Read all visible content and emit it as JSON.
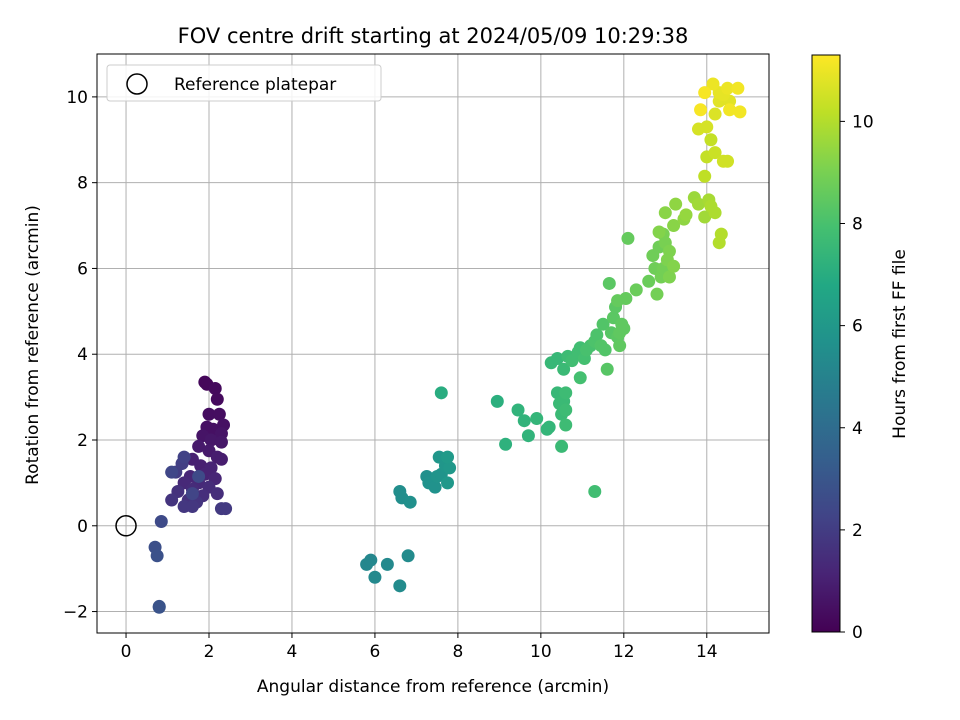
{
  "chart_data": {
    "type": "scatter",
    "title": "FOV centre drift starting at 2024/05/09 10:29:38",
    "xlabel": "Angular distance from reference (arcmin)",
    "ylabel": "Rotation from reference (arcmin)",
    "xlim": [
      -0.7,
      15.5
    ],
    "ylim": [
      -2.5,
      11.0
    ],
    "x_ticks": [
      0,
      2,
      4,
      6,
      8,
      10,
      12,
      14
    ],
    "y_ticks": [
      -2,
      0,
      2,
      4,
      6,
      8,
      10
    ],
    "grid": true,
    "legend": {
      "location": "upper-left",
      "entries": [
        "Reference platepar"
      ]
    },
    "reference_point": {
      "x": 0,
      "y": 0,
      "marker": "hollow-circle"
    },
    "colorbar": {
      "label": "Hours from first FF file",
      "range": [
        0,
        11.3
      ],
      "ticks": [
        0,
        2,
        4,
        6,
        8,
        10
      ],
      "colormap": "viridis"
    },
    "points": [
      [
        1.9,
        3.35,
        0.2
      ],
      [
        1.95,
        3.3,
        0.2
      ],
      [
        2.15,
        3.2,
        0.3
      ],
      [
        2.2,
        2.95,
        0.3
      ],
      [
        2.0,
        2.6,
        0.4
      ],
      [
        2.25,
        2.6,
        0.4
      ],
      [
        1.95,
        2.3,
        0.5
      ],
      [
        2.1,
        2.25,
        0.5
      ],
      [
        2.35,
        2.35,
        0.5
      ],
      [
        2.3,
        2.15,
        0.6
      ],
      [
        1.85,
        2.1,
        0.6
      ],
      [
        2.05,
        2.0,
        0.7
      ],
      [
        2.3,
        1.95,
        0.7
      ],
      [
        1.75,
        1.85,
        0.8
      ],
      [
        2.0,
        1.75,
        0.8
      ],
      [
        2.2,
        1.6,
        0.9
      ],
      [
        2.3,
        1.55,
        0.9
      ],
      [
        1.6,
        1.55,
        1.0
      ],
      [
        1.8,
        1.4,
        1.0
      ],
      [
        2.05,
        1.35,
        1.1
      ],
      [
        1.9,
        1.2,
        1.1
      ],
      [
        1.55,
        1.15,
        1.2
      ],
      [
        2.15,
        1.1,
        1.2
      ],
      [
        1.75,
        1.0,
        1.3
      ],
      [
        1.4,
        1.0,
        1.3
      ],
      [
        2.0,
        0.9,
        1.4
      ],
      [
        1.6,
        0.85,
        1.4
      ],
      [
        2.2,
        0.75,
        1.5
      ],
      [
        1.85,
        0.7,
        1.5
      ],
      [
        1.25,
        0.8,
        1.6
      ],
      [
        1.5,
        0.6,
        1.6
      ],
      [
        1.1,
        0.6,
        1.7
      ],
      [
        1.7,
        0.55,
        1.7
      ],
      [
        1.4,
        0.45,
        1.8
      ],
      [
        1.6,
        0.45,
        1.8
      ],
      [
        2.3,
        0.4,
        1.9
      ],
      [
        2.4,
        0.4,
        1.9
      ],
      [
        1.2,
        1.25,
        2.0
      ],
      [
        1.35,
        1.45,
        2.1
      ],
      [
        1.4,
        1.6,
        2.2
      ],
      [
        1.6,
        0.75,
        2.3
      ],
      [
        1.1,
        1.25,
        2.4
      ],
      [
        1.75,
        1.15,
        2.5
      ],
      [
        0.85,
        0.1,
        2.5
      ],
      [
        0.7,
        -0.5,
        2.7
      ],
      [
        0.75,
        -0.7,
        2.8
      ],
      [
        0.8,
        -1.9,
        2.9
      ],
      [
        0.8,
        -1.88,
        2.9
      ],
      [
        5.8,
        -0.9,
        5.2
      ],
      [
        5.9,
        -0.8,
        5.2
      ],
      [
        6.0,
        -1.2,
        5.3
      ],
      [
        6.3,
        -0.9,
        5.3
      ],
      [
        6.6,
        -1.4,
        5.4
      ],
      [
        6.8,
        -0.7,
        5.4
      ],
      [
        6.6,
        0.8,
        5.5
      ],
      [
        6.65,
        0.65,
        5.5
      ],
      [
        6.85,
        0.55,
        5.6
      ],
      [
        7.25,
        1.15,
        5.6
      ],
      [
        7.3,
        1.0,
        5.7
      ],
      [
        7.45,
        0.9,
        5.7
      ],
      [
        7.5,
        1.15,
        5.8
      ],
      [
        7.6,
        1.2,
        5.8
      ],
      [
        7.55,
        1.6,
        5.9
      ],
      [
        7.7,
        1.4,
        5.9
      ],
      [
        7.75,
        1.0,
        6.0
      ],
      [
        7.8,
        1.35,
        6.0
      ],
      [
        7.75,
        1.6,
        6.1
      ],
      [
        7.6,
        3.1,
        7.0
      ],
      [
        8.95,
        2.9,
        7.1
      ],
      [
        9.15,
        1.9,
        7.2
      ],
      [
        9.45,
        2.7,
        7.3
      ],
      [
        9.6,
        2.45,
        7.3
      ],
      [
        9.7,
        2.1,
        7.3
      ],
      [
        9.9,
        2.5,
        7.4
      ],
      [
        10.15,
        2.25,
        7.4
      ],
      [
        10.2,
        2.3,
        7.4
      ],
      [
        10.25,
        3.8,
        7.5
      ],
      [
        10.4,
        3.9,
        7.5
      ],
      [
        10.4,
        3.1,
        7.5
      ],
      [
        10.45,
        2.85,
        7.6
      ],
      [
        10.5,
        1.85,
        7.6
      ],
      [
        10.5,
        2.6,
        7.6
      ],
      [
        10.55,
        2.9,
        7.6
      ],
      [
        10.55,
        3.65,
        7.6
      ],
      [
        10.6,
        2.7,
        7.7
      ],
      [
        10.6,
        2.35,
        7.7
      ],
      [
        10.6,
        3.1,
        7.7
      ],
      [
        10.65,
        3.95,
        7.7
      ],
      [
        10.75,
        3.85,
        7.8
      ],
      [
        10.9,
        4.05,
        7.8
      ],
      [
        10.95,
        4.15,
        7.8
      ],
      [
        10.95,
        3.45,
        7.9
      ],
      [
        11.05,
        3.9,
        7.9
      ],
      [
        11.1,
        4.1,
        8.0
      ],
      [
        11.2,
        4.2,
        8.0
      ],
      [
        11.3,
        0.8,
        7.8
      ],
      [
        11.3,
        4.3,
        8.1
      ],
      [
        11.35,
        4.45,
        8.1
      ],
      [
        11.45,
        4.2,
        8.2
      ],
      [
        11.5,
        4.7,
        8.2
      ],
      [
        11.55,
        4.1,
        8.2
      ],
      [
        11.6,
        3.65,
        8.3
      ],
      [
        11.65,
        5.65,
        8.4
      ],
      [
        11.7,
        4.5,
        8.3
      ],
      [
        11.75,
        4.85,
        8.4
      ],
      [
        11.8,
        5.1,
        8.4
      ],
      [
        11.85,
        4.4,
        8.4
      ],
      [
        11.9,
        4.5,
        8.5
      ],
      [
        11.95,
        4.7,
        8.5
      ],
      [
        12.0,
        4.6,
        8.5
      ],
      [
        11.9,
        4.2,
        8.5
      ],
      [
        12.05,
        5.3,
        8.6
      ],
      [
        12.1,
        6.7,
        8.6
      ],
      [
        11.85,
        5.25,
        8.6
      ],
      [
        12.3,
        5.5,
        8.7
      ],
      [
        12.6,
        5.7,
        8.7
      ],
      [
        12.75,
        6.0,
        8.8
      ],
      [
        12.7,
        6.3,
        8.8
      ],
      [
        12.85,
        6.5,
        8.8
      ],
      [
        12.8,
        5.4,
        8.9
      ],
      [
        12.9,
        5.8,
        8.9
      ],
      [
        12.95,
        6.0,
        8.9
      ],
      [
        12.95,
        6.8,
        9.0
      ],
      [
        13.0,
        6.6,
        9.0
      ],
      [
        13.05,
        6.2,
        9.1
      ],
      [
        13.1,
        5.8,
        9.1
      ],
      [
        13.1,
        6.4,
        9.1
      ],
      [
        13.2,
        6.05,
        9.2
      ],
      [
        12.85,
        6.85,
        9.2
      ],
      [
        13.0,
        7.3,
        9.3
      ],
      [
        13.2,
        7.0,
        9.3
      ],
      [
        13.25,
        7.5,
        9.4
      ],
      [
        13.45,
        7.15,
        9.4
      ],
      [
        13.5,
        7.25,
        9.5
      ],
      [
        13.7,
        7.65,
        9.6
      ],
      [
        13.8,
        7.5,
        9.7
      ],
      [
        13.95,
        7.2,
        9.7
      ],
      [
        14.05,
        7.6,
        9.8
      ],
      [
        14.1,
        7.45,
        9.9
      ],
      [
        14.2,
        7.3,
        9.9
      ],
      [
        14.35,
        6.8,
        10.0
      ],
      [
        14.3,
        6.6,
        10.0
      ],
      [
        13.95,
        8.15,
        10.2
      ],
      [
        14.0,
        8.6,
        10.3
      ],
      [
        14.1,
        9.0,
        10.3
      ],
      [
        14.2,
        8.7,
        10.4
      ],
      [
        14.4,
        8.5,
        10.5
      ],
      [
        14.5,
        8.5,
        10.5
      ],
      [
        14.0,
        9.3,
        10.6
      ],
      [
        13.8,
        9.25,
        10.6
      ],
      [
        14.2,
        9.6,
        10.7
      ],
      [
        14.3,
        9.9,
        10.8
      ],
      [
        14.55,
        9.9,
        10.8
      ],
      [
        14.4,
        10.05,
        10.9
      ],
      [
        14.3,
        10.1,
        10.9
      ],
      [
        14.15,
        10.3,
        11.0
      ],
      [
        14.5,
        10.2,
        11.0
      ],
      [
        14.75,
        10.2,
        11.1
      ],
      [
        14.8,
        9.65,
        11.1
      ],
      [
        14.55,
        9.7,
        11.1
      ],
      [
        13.85,
        9.7,
        11.2
      ],
      [
        13.95,
        10.1,
        11.2
      ]
    ]
  }
}
